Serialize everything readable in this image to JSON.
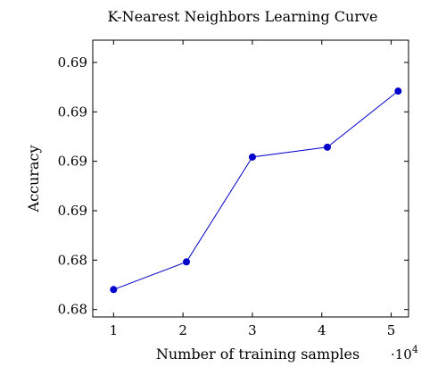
{
  "chart_data": {
    "type": "line",
    "title": "K-Nearest Neighbors Learning Curve",
    "xlabel": "Number of training samples",
    "ylabel": "Accuracy",
    "x_multiplier": "·10",
    "x_multiplier_exponent": "4",
    "x_ticks": [
      "1",
      "2",
      "3",
      "4",
      "5"
    ],
    "y_ticks": [
      "0.68",
      "0.68",
      "0.69",
      "0.69",
      "0.69",
      "0.69"
    ],
    "y_tick_values": [
      0.68,
      0.682,
      0.684,
      0.686,
      0.688,
      0.69
    ],
    "xlim": [
      0.7,
      5.25
    ],
    "ylim": [
      0.6797,
      0.6909
    ],
    "grid": false,
    "series": [
      {
        "color": "#0000cc",
        "x": [
          1.0,
          2.05,
          3.0,
          4.08,
          5.1
        ],
        "y": [
          0.68081,
          0.68193,
          0.68617,
          0.68657,
          0.68884
        ]
      }
    ]
  }
}
